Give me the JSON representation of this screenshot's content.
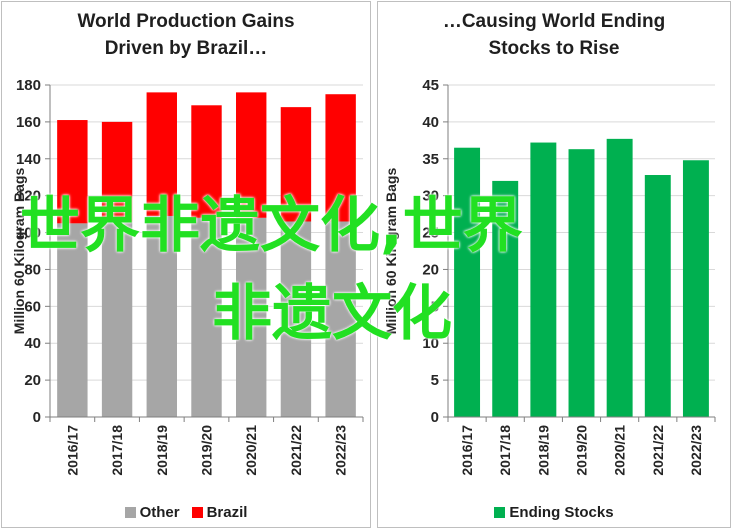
{
  "watermark": {
    "line1": "世界非遗文化,世界",
    "line2": "非遗文化"
  },
  "chart_data": [
    {
      "type": "bar",
      "stacked": true,
      "title_line1": "World Production Gains",
      "title_line2": "Driven by Brazil…",
      "ylabel": "Million 60 Kilogram Bags",
      "ylim": [
        0,
        180
      ],
      "yticks": [
        0,
        20,
        40,
        60,
        80,
        100,
        120,
        140,
        160,
        180
      ],
      "categories": [
        "2016/17",
        "2017/18",
        "2018/19",
        "2019/20",
        "2020/21",
        "2021/22",
        "2022/23"
      ],
      "series": [
        {
          "name": "Other",
          "color": "#a6a6a6",
          "values": [
            105,
            106,
            109,
            108,
            108,
            106,
            106
          ]
        },
        {
          "name": "Brazil",
          "color": "#ff0000",
          "values": [
            56,
            54,
            67,
            61,
            68,
            62,
            69
          ]
        }
      ],
      "legend": "bottom"
    },
    {
      "type": "bar",
      "title_line1": "…Causing World Ending",
      "title_line2": "Stocks to Rise",
      "ylabel": "Million 60 Kilogram Bags",
      "ylim": [
        0,
        45
      ],
      "yticks": [
        0,
        5,
        10,
        15,
        20,
        25,
        30,
        35,
        40,
        45
      ],
      "categories": [
        "2016/17",
        "2017/18",
        "2018/19",
        "2019/20",
        "2020/21",
        "2021/22",
        "2022/23"
      ],
      "series": [
        {
          "name": "Ending Stocks",
          "color": "#00b050",
          "values": [
            36.5,
            32.0,
            37.2,
            36.3,
            37.7,
            32.8,
            34.8
          ]
        }
      ],
      "legend": "bottom"
    }
  ]
}
